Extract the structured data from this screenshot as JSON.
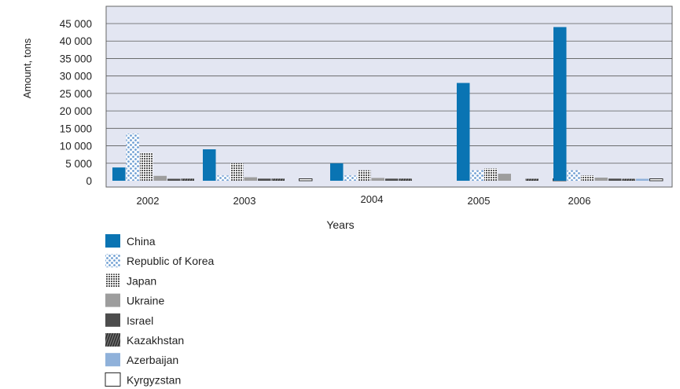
{
  "chart_data": {
    "type": "bar",
    "title": "",
    "xlabel": "Years",
    "ylabel": "Amount, tons",
    "categories": [
      "2002",
      "2003",
      "2004",
      "2005",
      "2006"
    ],
    "ylim": [
      0,
      45000
    ],
    "ytick_values": [
      0,
      5000,
      10000,
      15000,
      20000,
      25000,
      30000,
      35000,
      40000,
      45000
    ],
    "ytick_labels": [
      "0",
      "5 000",
      "10 000",
      "15 000",
      "20 000",
      "25 000",
      "30 000",
      "35 000",
      "40 000",
      "45 000"
    ],
    "grid": true,
    "legend_position": "bottom-left",
    "background_color": "#e3e6f2",
    "series": [
      {
        "name": "China",
        "color": "#0a74b3",
        "pattern": "solid",
        "values": [
          3800,
          9000,
          5000,
          28000,
          44000
        ]
      },
      {
        "name": "Republic of Korea",
        "color": "#7aa6d6",
        "pattern": "dots",
        "values": [
          13500,
          1500,
          1500,
          3000,
          3000
        ]
      },
      {
        "name": "Japan",
        "color": "#555555",
        "pattern": "grid",
        "values": [
          8000,
          5000,
          3000,
          3500,
          1500
        ]
      },
      {
        "name": "Ukraine",
        "color": "#9d9d9d",
        "pattern": "solid",
        "values": [
          1400,
          1000,
          800,
          2000,
          900
        ]
      },
      {
        "name": "Israel",
        "color": "#4d4d4d",
        "pattern": "solid",
        "values": [
          500,
          600,
          600,
          0,
          600
        ]
      },
      {
        "name": "Kazakhstan",
        "color": "#333333",
        "pattern": "stripes",
        "values": [
          600,
          600,
          600,
          500,
          500
        ]
      },
      {
        "name": "Azerbaijan",
        "color": "#8fb1da",
        "pattern": "solid",
        "values": [
          0,
          0,
          0,
          0,
          500
        ]
      },
      {
        "name": "Kyrgyzstan",
        "color": "#ffffff",
        "pattern": "outline",
        "values": [
          0,
          500,
          0,
          500,
          500
        ]
      }
    ]
  }
}
